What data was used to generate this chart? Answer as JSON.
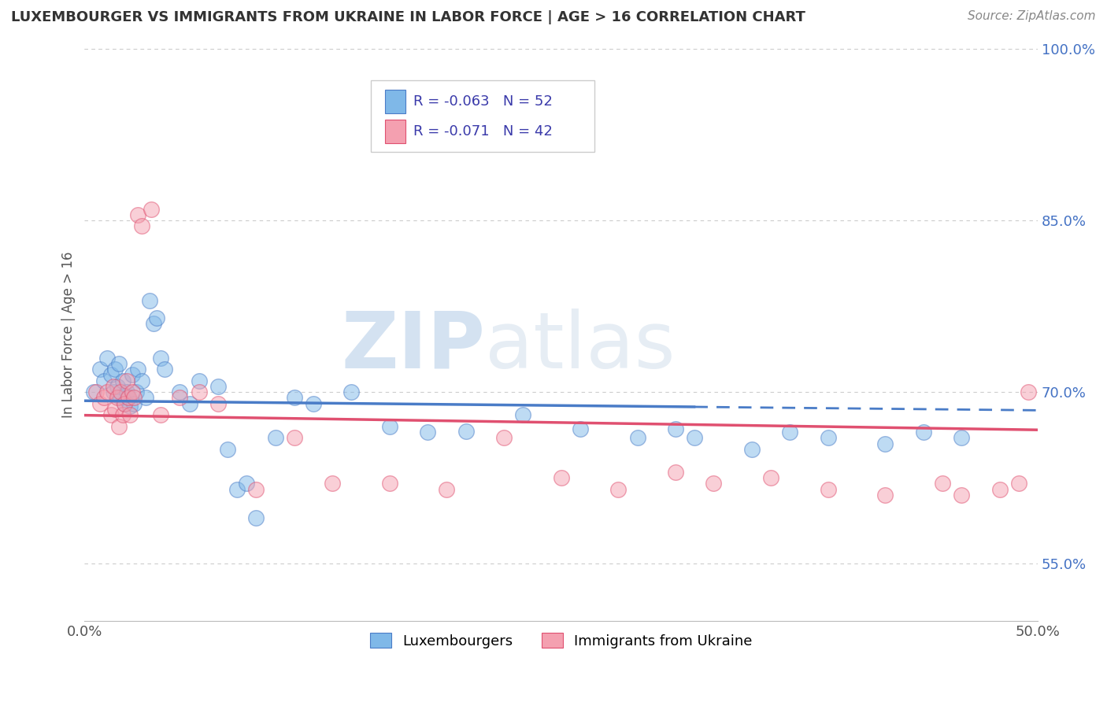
{
  "title": "LUXEMBOURGER VS IMMIGRANTS FROM UKRAINE IN LABOR FORCE | AGE > 16 CORRELATION CHART",
  "source": "Source: ZipAtlas.com",
  "ylabel": "In Labor Force | Age > 16",
  "R1": -0.063,
  "N1": 52,
  "R2": -0.071,
  "N2": 42,
  "legend_label_1": "Luxembourgers",
  "legend_label_2": "Immigrants from Ukraine",
  "color1": "#7fb8e8",
  "color2": "#f4a0b0",
  "trendline_color1": "#4a7cc7",
  "trendline_color2": "#e05070",
  "xlim": [
    0.0,
    0.5
  ],
  "ylim": [
    0.5,
    1.0
  ],
  "ytick_values": [
    0.55,
    0.7,
    0.85,
    1.0
  ],
  "ytick_labels": [
    "55.0%",
    "70.0%",
    "85.0%",
    "100.0%"
  ],
  "background_color": "#ffffff",
  "grid_color": "#cccccc",
  "luxembourgers_x": [
    0.005,
    0.008,
    0.01,
    0.012,
    0.014,
    0.015,
    0.016,
    0.017,
    0.018,
    0.019,
    0.02,
    0.021,
    0.022,
    0.023,
    0.024,
    0.025,
    0.026,
    0.027,
    0.028,
    0.03,
    0.032,
    0.034,
    0.036,
    0.038,
    0.04,
    0.042,
    0.05,
    0.055,
    0.06,
    0.07,
    0.075,
    0.08,
    0.085,
    0.09,
    0.1,
    0.11,
    0.12,
    0.14,
    0.16,
    0.18,
    0.2,
    0.23,
    0.26,
    0.29,
    0.31,
    0.32,
    0.35,
    0.37,
    0.39,
    0.42,
    0.44,
    0.46
  ],
  "luxembourgers_y": [
    0.7,
    0.72,
    0.71,
    0.73,
    0.715,
    0.7,
    0.72,
    0.705,
    0.725,
    0.695,
    0.71,
    0.69,
    0.7,
    0.695,
    0.688,
    0.715,
    0.69,
    0.7,
    0.72,
    0.71,
    0.695,
    0.78,
    0.76,
    0.765,
    0.73,
    0.72,
    0.7,
    0.69,
    0.71,
    0.705,
    0.65,
    0.615,
    0.62,
    0.59,
    0.66,
    0.695,
    0.69,
    0.7,
    0.67,
    0.665,
    0.666,
    0.68,
    0.668,
    0.66,
    0.668,
    0.66,
    0.65,
    0.665,
    0.66,
    0.655,
    0.665,
    0.66
  ],
  "ukraine_x": [
    0.006,
    0.008,
    0.01,
    0.012,
    0.014,
    0.015,
    0.016,
    0.017,
    0.018,
    0.019,
    0.02,
    0.021,
    0.022,
    0.023,
    0.024,
    0.025,
    0.026,
    0.028,
    0.03,
    0.035,
    0.04,
    0.05,
    0.06,
    0.07,
    0.09,
    0.11,
    0.13,
    0.16,
    0.19,
    0.22,
    0.25,
    0.28,
    0.31,
    0.33,
    0.36,
    0.39,
    0.42,
    0.45,
    0.46,
    0.48,
    0.49,
    0.495
  ],
  "ukraine_y": [
    0.7,
    0.69,
    0.695,
    0.7,
    0.68,
    0.705,
    0.685,
    0.695,
    0.67,
    0.7,
    0.68,
    0.69,
    0.71,
    0.695,
    0.68,
    0.7,
    0.695,
    0.855,
    0.845,
    0.86,
    0.68,
    0.695,
    0.7,
    0.69,
    0.615,
    0.66,
    0.62,
    0.62,
    0.615,
    0.66,
    0.625,
    0.615,
    0.63,
    0.62,
    0.625,
    0.615,
    0.61,
    0.62,
    0.61,
    0.615,
    0.62,
    0.7
  ],
  "lux_trend_end": 0.32,
  "watermark_zip": "ZIP",
  "watermark_atlas": "atlas"
}
